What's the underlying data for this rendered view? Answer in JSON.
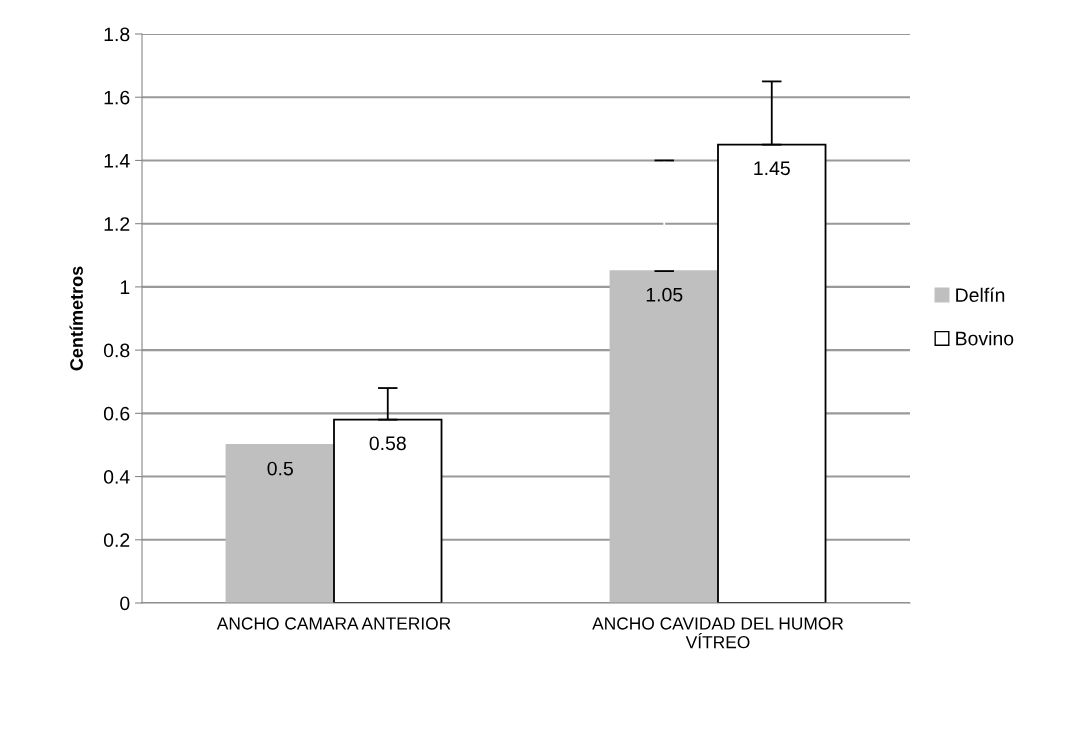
{
  "chart_data": {
    "type": "bar",
    "ylabel": "Centímetros",
    "categories": [
      "ANCHO CAMARA ANTERIOR",
      "ANCHO CAVIDAD DEL HUMOR VÍTREO"
    ],
    "series": [
      {
        "name": "Delfín",
        "color": "#bfbfbf",
        "values": [
          0.5,
          1.05
        ],
        "errors": [
          null,
          0.35
        ]
      },
      {
        "name": "Bovino",
        "color": "#ffffff",
        "values": [
          0.58,
          1.45
        ],
        "errors": [
          0.1,
          0.2
        ]
      }
    ],
    "ylim": [
      0,
      1.8
    ],
    "yticks": [
      0,
      0.2,
      0.4,
      0.6,
      0.8,
      1,
      1.2,
      1.4,
      1.6,
      1.8
    ],
    "grid": "y",
    "legend": "right",
    "data_labels": true
  }
}
